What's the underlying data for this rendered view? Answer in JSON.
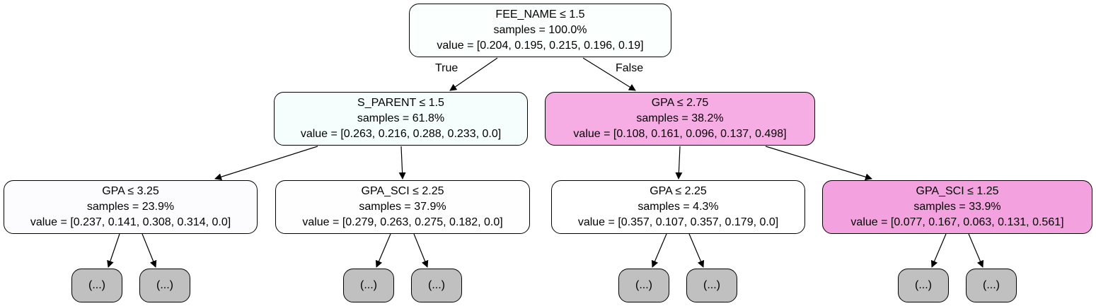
{
  "nodes": {
    "root": {
      "split": "FEE_NAME ≤ 1.5",
      "samples": "samples = 100.0%",
      "value": "value = [0.204, 0.195, 0.215, 0.196, 0.19]",
      "fill": "#fbfffe"
    },
    "n1": {
      "split": "S_PARENT ≤ 1.5",
      "samples": "samples = 61.8%",
      "value": "value = [0.263, 0.216, 0.288, 0.233, 0.0]",
      "fill": "#f5fdfd"
    },
    "n2": {
      "split": "GPA ≤ 2.75",
      "samples": "samples = 38.2%",
      "value": "value = [0.108, 0.161, 0.096, 0.137, 0.498]",
      "fill": "#f5ade4"
    },
    "n3": {
      "split": "GPA ≤ 3.25",
      "samples": "samples = 23.9%",
      "value": "value = [0.237, 0.141, 0.308, 0.314, 0.0]",
      "fill": "#fcfcff"
    },
    "n4": {
      "split": "GPA_SCI ≤ 2.25",
      "samples": "samples = 37.9%",
      "value": "value = [0.279, 0.263, 0.275, 0.182, 0.0]",
      "fill": "#fffefe"
    },
    "n5": {
      "split": "GPA ≤ 2.25",
      "samples": "samples = 4.3%",
      "value": "value = [0.357, 0.107, 0.357, 0.179, 0.0]",
      "fill": "#ffffff"
    },
    "n6": {
      "split": "GPA_SCI ≤ 1.25",
      "samples": "samples = 33.9%",
      "value": "value = [0.077, 0.167, 0.063, 0.131, 0.561]",
      "fill": "#f3a2df"
    }
  },
  "truncated_label": "(...)",
  "edge_labels": {
    "true": "True",
    "false": "False"
  },
  "colors": {
    "line": "#000000",
    "truncated_fill": "#c0c0c0"
  }
}
